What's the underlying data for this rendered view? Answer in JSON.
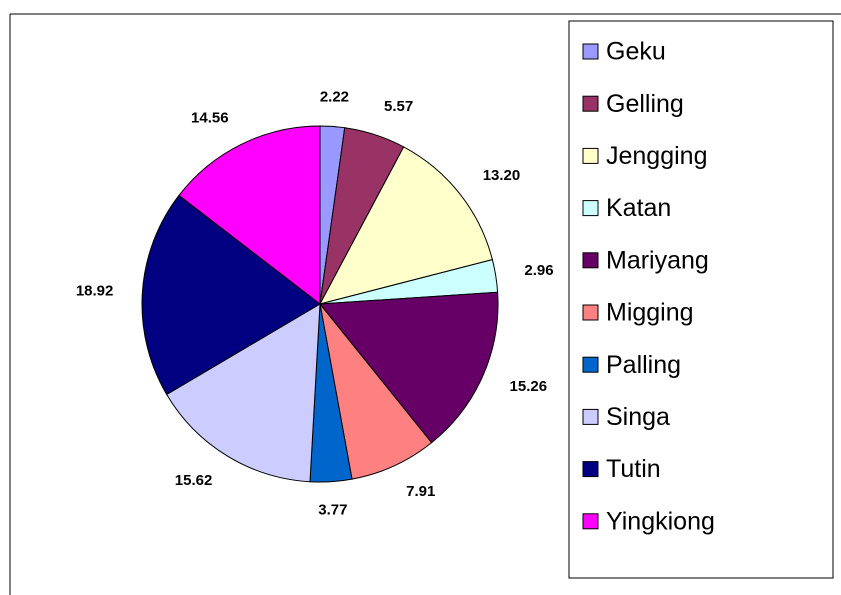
{
  "chart_data": {
    "type": "pie",
    "categories": [
      "Geku",
      "Gelling",
      "Jengging",
      "Katan",
      "Mariyang",
      "Migging",
      "Palling",
      "Singa",
      "Tutin",
      "Yingkiong"
    ],
    "values": [
      2.22,
      5.57,
      13.2,
      2.96,
      15.26,
      7.91,
      3.77,
      15.62,
      18.92,
      14.56
    ],
    "value_labels": [
      "2.22",
      "5.57",
      "13.20",
      "2.96",
      "15.26",
      "7.91",
      "3.77",
      "15.62",
      "18.92",
      "14.56"
    ],
    "colors": [
      "#9999ff",
      "#993366",
      "#ffffcc",
      "#ccffff",
      "#660066",
      "#ff8080",
      "#0066cc",
      "#ccccff",
      "#000080",
      "#ff00ff"
    ],
    "legend": "right"
  }
}
